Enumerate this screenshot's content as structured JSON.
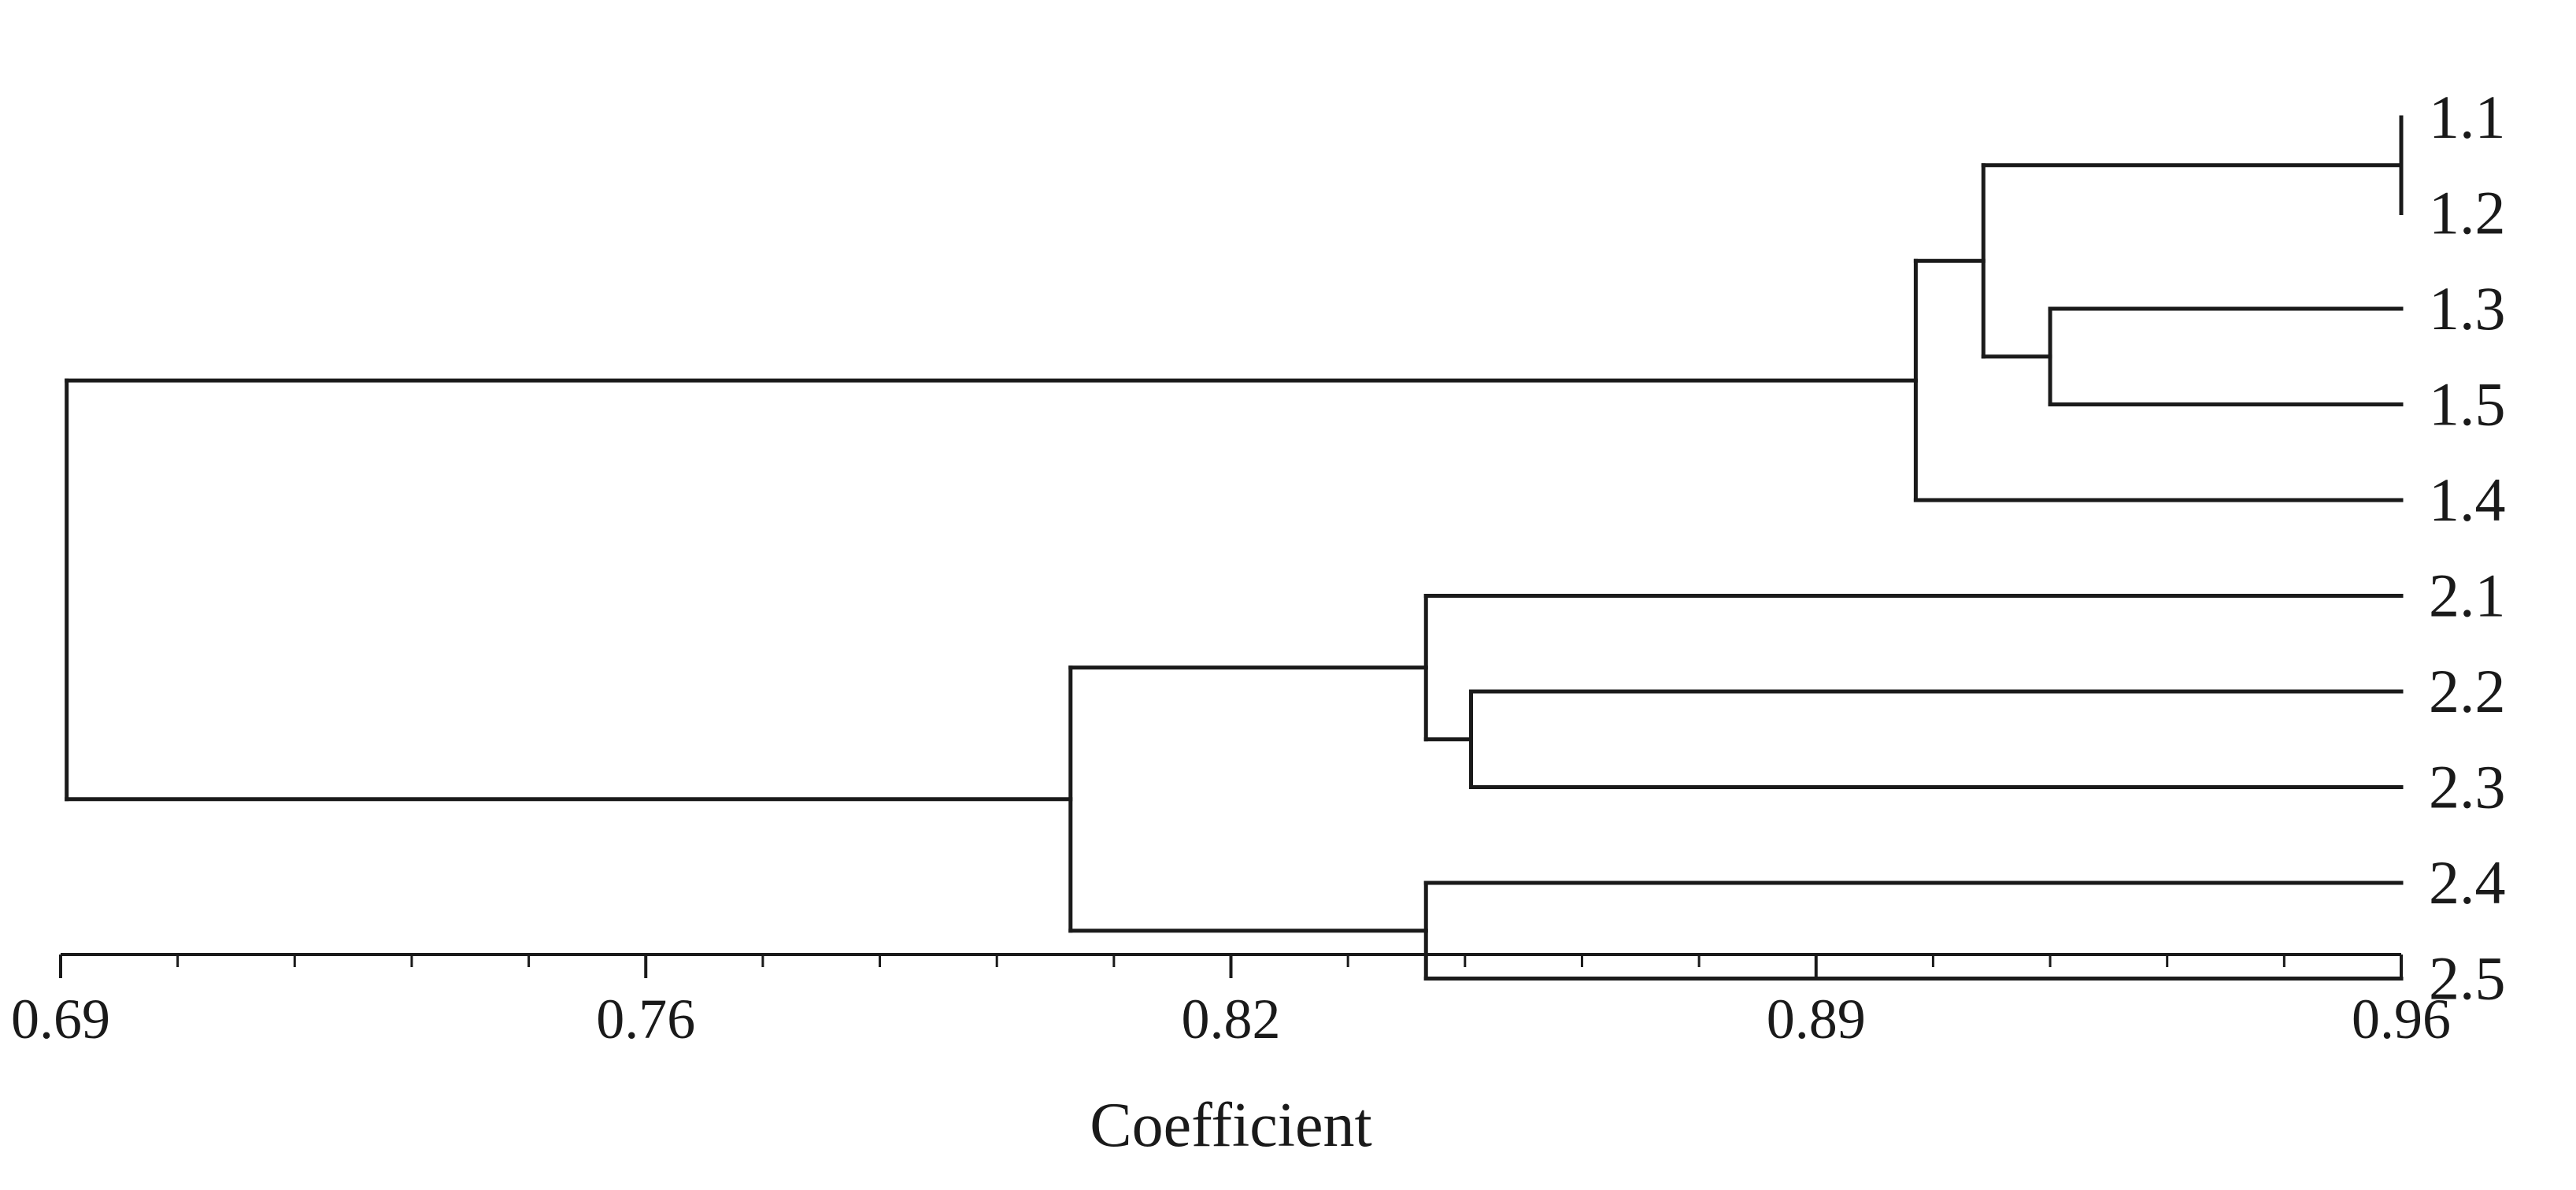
{
  "chart_data": {
    "type": "dendrogram",
    "xlabel": "Coefficient",
    "xlim": [
      0.69,
      0.96
    ],
    "x_ticks": [
      {
        "value": 0.69,
        "label": "0.69"
      },
      {
        "value": 0.7575,
        "label": "0.76"
      },
      {
        "value": 0.825,
        "label": "0.82"
      },
      {
        "value": 0.8925,
        "label": "0.89"
      },
      {
        "value": 0.96,
        "label": "0.96"
      }
    ],
    "minor_ticks_per_interval": 5,
    "leaves": [
      "1.1",
      "1.2",
      "1.3",
      "1.5",
      "1.4",
      "2.1",
      "2.2",
      "2.3",
      "2.4",
      "2.5"
    ],
    "leaf_coefficient": 0.96,
    "merges": [
      {
        "id": "A",
        "children": [
          "1.1",
          "1.2"
        ],
        "coefficient": 0.96
      },
      {
        "id": "B",
        "children": [
          "1.3",
          "1.5"
        ],
        "coefficient": 0.9195
      },
      {
        "id": "C",
        "children": [
          "A",
          "B"
        ],
        "coefficient": 0.9118
      },
      {
        "id": "D",
        "children": [
          "C",
          "1.4"
        ],
        "coefficient": 0.904
      },
      {
        "id": "E",
        "children": [
          "2.2",
          "2.3"
        ],
        "coefficient": 0.8527
      },
      {
        "id": "F",
        "children": [
          "2.1",
          "E"
        ],
        "coefficient": 0.8475
      },
      {
        "id": "G",
        "children": [
          "2.4",
          "2.5"
        ],
        "coefficient": 0.8475
      },
      {
        "id": "H",
        "children": [
          "F",
          "G"
        ],
        "coefficient": 0.8065
      },
      {
        "id": "I",
        "children": [
          "D",
          "H"
        ],
        "coefficient": 0.6907
      }
    ]
  }
}
